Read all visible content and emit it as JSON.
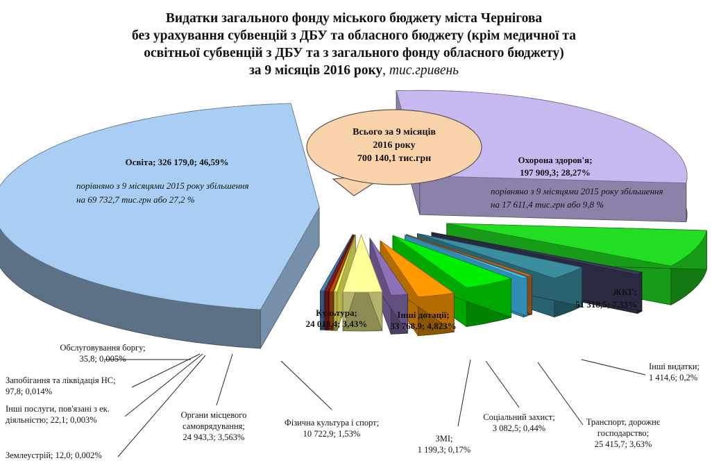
{
  "chart_data": {
    "type": "pie",
    "style": "3d-exploded",
    "title_lines": [
      "Видатки загального фонду міського бюджету міста Чернігова",
      "без урахування субвенцій з ДБУ та обласного бюджету (крім медичної та",
      "освітньої субвенцій з ДБУ та з загального фонду обласного бюджету)",
      "за 9 місяців 2016 року"
    ],
    "title_unit": ", тис.гривень",
    "total_callout": [
      "Всього за 9 місяців",
      "2016 року",
      "700 140,1 тис.грн"
    ],
    "slices": [
      {
        "name": "Освіта",
        "value": 326179.0,
        "percent": 46.59,
        "color": "#a9cdf3",
        "label": "Освіта; 326 179,0; 46,59%"
      },
      {
        "name": "Обслуговування боргу",
        "value": 35.8,
        "percent": 0.005,
        "color": "#4a7eb8",
        "label_lines": [
          "Обслуговування боргу;",
          "35,8; 0,005%"
        ]
      },
      {
        "name": "Запобігання та ліквідація НС",
        "value": 97.8,
        "percent": 0.014,
        "color": "#8b1a1a",
        "label_lines": [
          "Запобігання та ліквідація НС;",
          "97,8; 0,014%"
        ]
      },
      {
        "name": "Інші послуги, пов'язані з ек. діяльністю",
        "value": 22.1,
        "percent": 0.003,
        "color": "#c05000",
        "label_lines": [
          "Інші послуги, пов'язані з ек.",
          "діяльністю; 22,1; 0,003%"
        ]
      },
      {
        "name": "Землеустрій",
        "value": 12.0,
        "percent": 0.002,
        "color": "#ffff66",
        "label_lines": [
          "Землеустрій; 12,0; 0,002%"
        ]
      },
      {
        "name": "Органи місцевого самоврядування",
        "value": 24943.3,
        "percent": 3.563,
        "color": "#ffff99",
        "label_lines": [
          "Органи місцевого",
          "самоврядування;",
          "24 943,3; 3,563%"
        ]
      },
      {
        "name": "Фізична культура і спорт",
        "value": 10722.9,
        "percent": 1.53,
        "color": "#8e72b8",
        "label_lines": [
          "Фізична культура і спорт;",
          "10 722,9; 1,53%"
        ]
      },
      {
        "name": "Культура",
        "value": 24018.4,
        "percent": 3.43,
        "color": "#ff9a00",
        "label_lines": [
          "Культура;",
          "24 018,4; 3,43%"
        ]
      },
      {
        "name": "Інші дотації",
        "value": 33768.9,
        "percent": 4.823,
        "color": "#00ee00",
        "label_lines": [
          "Інші дотації;",
          "33 768,9; 4,823%"
        ]
      },
      {
        "name": "ЗМІ",
        "value": 1199.3,
        "percent": 0.17,
        "color": "#44c8ff",
        "label_lines": [
          "ЗМІ;",
          "1 199,3; 0,17%"
        ]
      },
      {
        "name": "Соціальний захист",
        "value": 3082.5,
        "percent": 0.44,
        "color": "#c0702a",
        "label_lines": [
          "Соціальний захист;",
          "3 082,5; 0,44%"
        ]
      },
      {
        "name": "Транспорт, дорожнє господарство",
        "value": 25415.7,
        "percent": 3.63,
        "color": "#3a8ea0",
        "label_lines": [
          "Транспорт, дорожнє",
          "господарство;",
          "25 415,7; 3,63%"
        ]
      },
      {
        "name": "Інші видатки",
        "value": 1414.6,
        "percent": 0.2,
        "color": "#3a3a5a",
        "label_lines": [
          "Інші видатки;",
          "1 414,6; 0,2%"
        ]
      },
      {
        "name": "ЖКГ",
        "value": 51318.5,
        "percent": 7.33,
        "color": "#22dd22",
        "label_lines": [
          "ЖКГ;",
          "51 318,5; 7,33%"
        ]
      },
      {
        "name": "Охорона здоров'я",
        "value": 197909.3,
        "percent": 28.27,
        "color": "#c8b8f0",
        "label_lines": [
          "Охорона здоров'я;",
          "197 909,3; 28,27%"
        ]
      }
    ],
    "annotations": {
      "education": [
        "порівняно з 9 місяцями 2015 року збільшення",
        "на 69 732,7 тис.грн або 27,2 %"
      ],
      "health": [
        "порівняно з 9 місяцями 2015 року збільшення",
        "на 17 611,4 тис.грн або 9,8 %"
      ]
    }
  }
}
